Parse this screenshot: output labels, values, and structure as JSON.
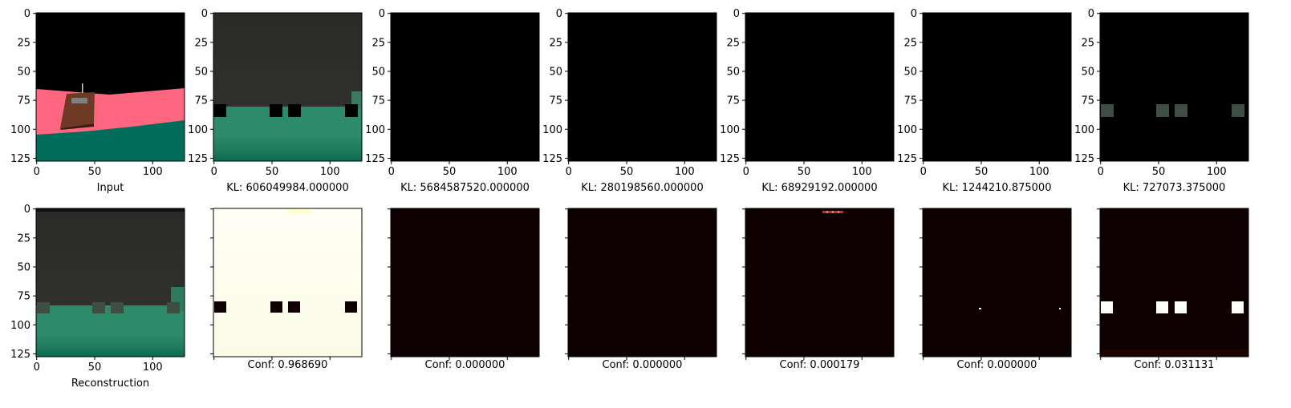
{
  "chart_data": [
    {
      "type": "heatmap",
      "panel": "input",
      "xlabel": "Input",
      "x_ticks": [
        0,
        50,
        100
      ],
      "y_ticks": [
        0,
        25,
        50,
        75,
        100,
        125
      ],
      "xlim": [
        0,
        128
      ],
      "ylim": [
        128,
        0
      ]
    },
    {
      "type": "heatmap",
      "panel": "kl-1",
      "xlabel": "KL: 606049984.000000",
      "x_ticks": [
        0,
        50,
        100
      ],
      "y_ticks": [
        0,
        25,
        50,
        75,
        100,
        125
      ],
      "xlim": [
        0,
        128
      ],
      "ylim": [
        128,
        0
      ]
    },
    {
      "type": "heatmap",
      "panel": "kl-2",
      "xlabel": "KL: 5684587520.000000",
      "x_ticks": [
        0,
        50,
        100
      ],
      "y_ticks": [
        0,
        25,
        50,
        75,
        100,
        125
      ],
      "xlim": [
        0,
        128
      ],
      "ylim": [
        128,
        0
      ]
    },
    {
      "type": "heatmap",
      "panel": "kl-3",
      "xlabel": "KL: 280198560.000000",
      "x_ticks": [
        0,
        50,
        100
      ],
      "y_ticks": [
        0,
        25,
        50,
        75,
        100,
        125
      ],
      "xlim": [
        0,
        128
      ],
      "ylim": [
        128,
        0
      ]
    },
    {
      "type": "heatmap",
      "panel": "kl-4",
      "xlabel": "KL: 68929192.000000",
      "x_ticks": [
        0,
        50,
        100
      ],
      "y_ticks": [
        0,
        25,
        50,
        75,
        100,
        125
      ],
      "xlim": [
        0,
        128
      ],
      "ylim": [
        128,
        0
      ]
    },
    {
      "type": "heatmap",
      "panel": "kl-5",
      "xlabel": "KL: 1244210.875000",
      "x_ticks": [
        0,
        50,
        100
      ],
      "y_ticks": [
        0,
        25,
        50,
        75,
        100,
        125
      ],
      "xlim": [
        0,
        128
      ],
      "ylim": [
        128,
        0
      ]
    },
    {
      "type": "heatmap",
      "panel": "kl-6",
      "xlabel": "KL: 727073.375000",
      "x_ticks": [
        0,
        50,
        100
      ],
      "y_ticks": [
        0,
        25,
        50,
        75,
        100,
        125
      ],
      "xlim": [
        0,
        128
      ],
      "ylim": [
        128,
        0
      ]
    },
    {
      "type": "heatmap",
      "panel": "reconstruction",
      "xlabel": "Reconstruction",
      "x_ticks": [
        0,
        50,
        100
      ],
      "y_ticks": [
        0,
        25,
        50,
        75,
        100,
        125
      ],
      "xlim": [
        0,
        128
      ],
      "ylim": [
        128,
        0
      ]
    },
    {
      "type": "heatmap",
      "panel": "conf-1",
      "xlabel": "Conf: 0.968690",
      "conf": 0.96869,
      "colormap": "hot",
      "xlim": [
        0,
        128
      ],
      "ylim": [
        128,
        0
      ]
    },
    {
      "type": "heatmap",
      "panel": "conf-2",
      "xlabel": "Conf: 0.000000",
      "conf": 0.0,
      "colormap": "hot",
      "xlim": [
        0,
        128
      ],
      "ylim": [
        128,
        0
      ]
    },
    {
      "type": "heatmap",
      "panel": "conf-3",
      "xlabel": "Conf: 0.000000",
      "conf": 0.0,
      "colormap": "hot",
      "xlim": [
        0,
        128
      ],
      "ylim": [
        128,
        0
      ]
    },
    {
      "type": "heatmap",
      "panel": "conf-4",
      "xlabel": "Conf: 0.000179",
      "conf": 0.000179,
      "colormap": "hot",
      "xlim": [
        0,
        128
      ],
      "ylim": [
        128,
        0
      ]
    },
    {
      "type": "heatmap",
      "panel": "conf-5",
      "xlabel": "Conf: 0.000000",
      "conf": 0.0,
      "colormap": "hot",
      "xlim": [
        0,
        128
      ],
      "ylim": [
        128,
        0
      ]
    },
    {
      "type": "heatmap",
      "panel": "conf-6",
      "xlabel": "Conf: 0.031131",
      "conf": 0.031131,
      "colormap": "hot",
      "xlim": [
        0,
        128
      ],
      "ylim": [
        128,
        0
      ]
    }
  ],
  "colors": {
    "sky": "#000000",
    "wall_pink": "#ff6680",
    "floor_teal": "#006e5a",
    "agent_brown": "#7a3a22",
    "dark_bg": "#2d2d2a",
    "green_band": "#2d8a6a",
    "grid_block": "#3e4e43",
    "hot_dark": "#0e0000",
    "hot_white": "#fffff0"
  }
}
